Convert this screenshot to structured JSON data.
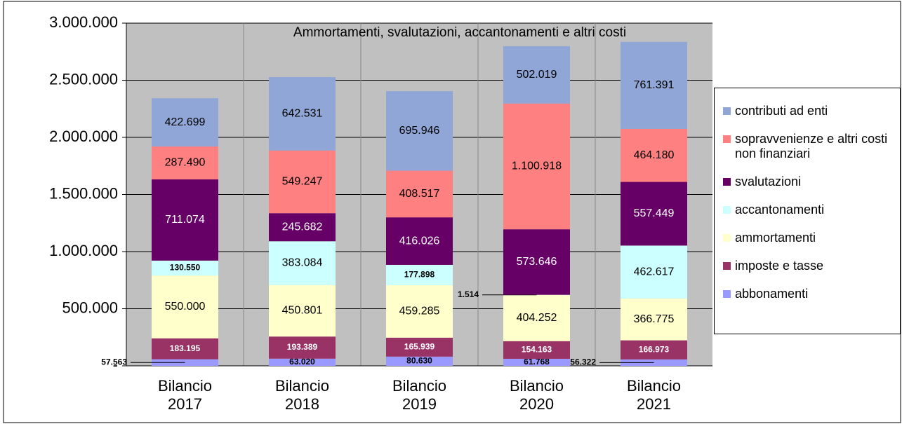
{
  "chart_data": {
    "type": "stacked_bar",
    "title": "Ammortamenti, svalutazioni, accantonamenti e altri costi",
    "categories": [
      "Bilancio 2017",
      "Bilancio 2018",
      "Bilancio 2019",
      "Bilancio 2020",
      "Bilancio 2021"
    ],
    "ylim": [
      0,
      3000000
    ],
    "yticks": [
      {
        "value": 0,
        "label": "-"
      },
      {
        "value": 500000,
        "label": "500.000"
      },
      {
        "value": 1000000,
        "label": "1.000.000"
      },
      {
        "value": 1500000,
        "label": "1.500.000"
      },
      {
        "value": 2000000,
        "label": "2.000.000"
      },
      {
        "value": 2500000,
        "label": "2.500.000"
      },
      {
        "value": 3000000,
        "label": "3.000.000"
      }
    ],
    "grid": true,
    "legend": "right",
    "series": [
      {
        "name": "abbonamenti",
        "color": "#9999ff",
        "values": [
          57563,
          63020,
          80630,
          61768,
          56322
        ],
        "value_labels": [
          "57.563",
          "63.020",
          "80.630",
          "61.768",
          "56.322"
        ]
      },
      {
        "name": "imposte e tasse",
        "color": "#993366",
        "values": [
          183195,
          193389,
          165939,
          154163,
          166973
        ],
        "value_labels": [
          "183.195",
          "193.389",
          "165.939",
          "154.163",
          "166.973"
        ]
      },
      {
        "name": "ammortamenti",
        "color": "#ffffcc",
        "values": [
          550000,
          450801,
          459285,
          404252,
          366775
        ],
        "value_labels": [
          "550.000",
          "450.801",
          "459.285",
          "404.252",
          "366.775"
        ]
      },
      {
        "name": "accantonamenti",
        "color": "#ccffff",
        "values": [
          130550,
          383084,
          177898,
          1514,
          462617
        ],
        "value_labels": [
          "130.550",
          "383.084",
          "177.898",
          "1.514",
          "462.617"
        ]
      },
      {
        "name": "svalutazioni",
        "color": "#660066",
        "values": [
          711074,
          245682,
          416026,
          573646,
          557449
        ],
        "value_labels": [
          "711.074",
          "245.682",
          "416.026",
          "573.646",
          "557.449"
        ]
      },
      {
        "name": "sopravvenienze e altri costi non finanziari",
        "color": "#ff8080",
        "values": [
          287490,
          549247,
          408517,
          1100918,
          464180
        ],
        "value_labels": [
          "287.490",
          "549.247",
          "408.517",
          "1.100.918",
          "464.180"
        ]
      },
      {
        "name": "contributi ad enti",
        "color": "#8fa6d6",
        "values": [
          422699,
          642531,
          695946,
          502019,
          761391
        ],
        "value_labels": [
          "422.699",
          "642.531",
          "695.946",
          "502.019",
          "761.391"
        ]
      }
    ]
  }
}
